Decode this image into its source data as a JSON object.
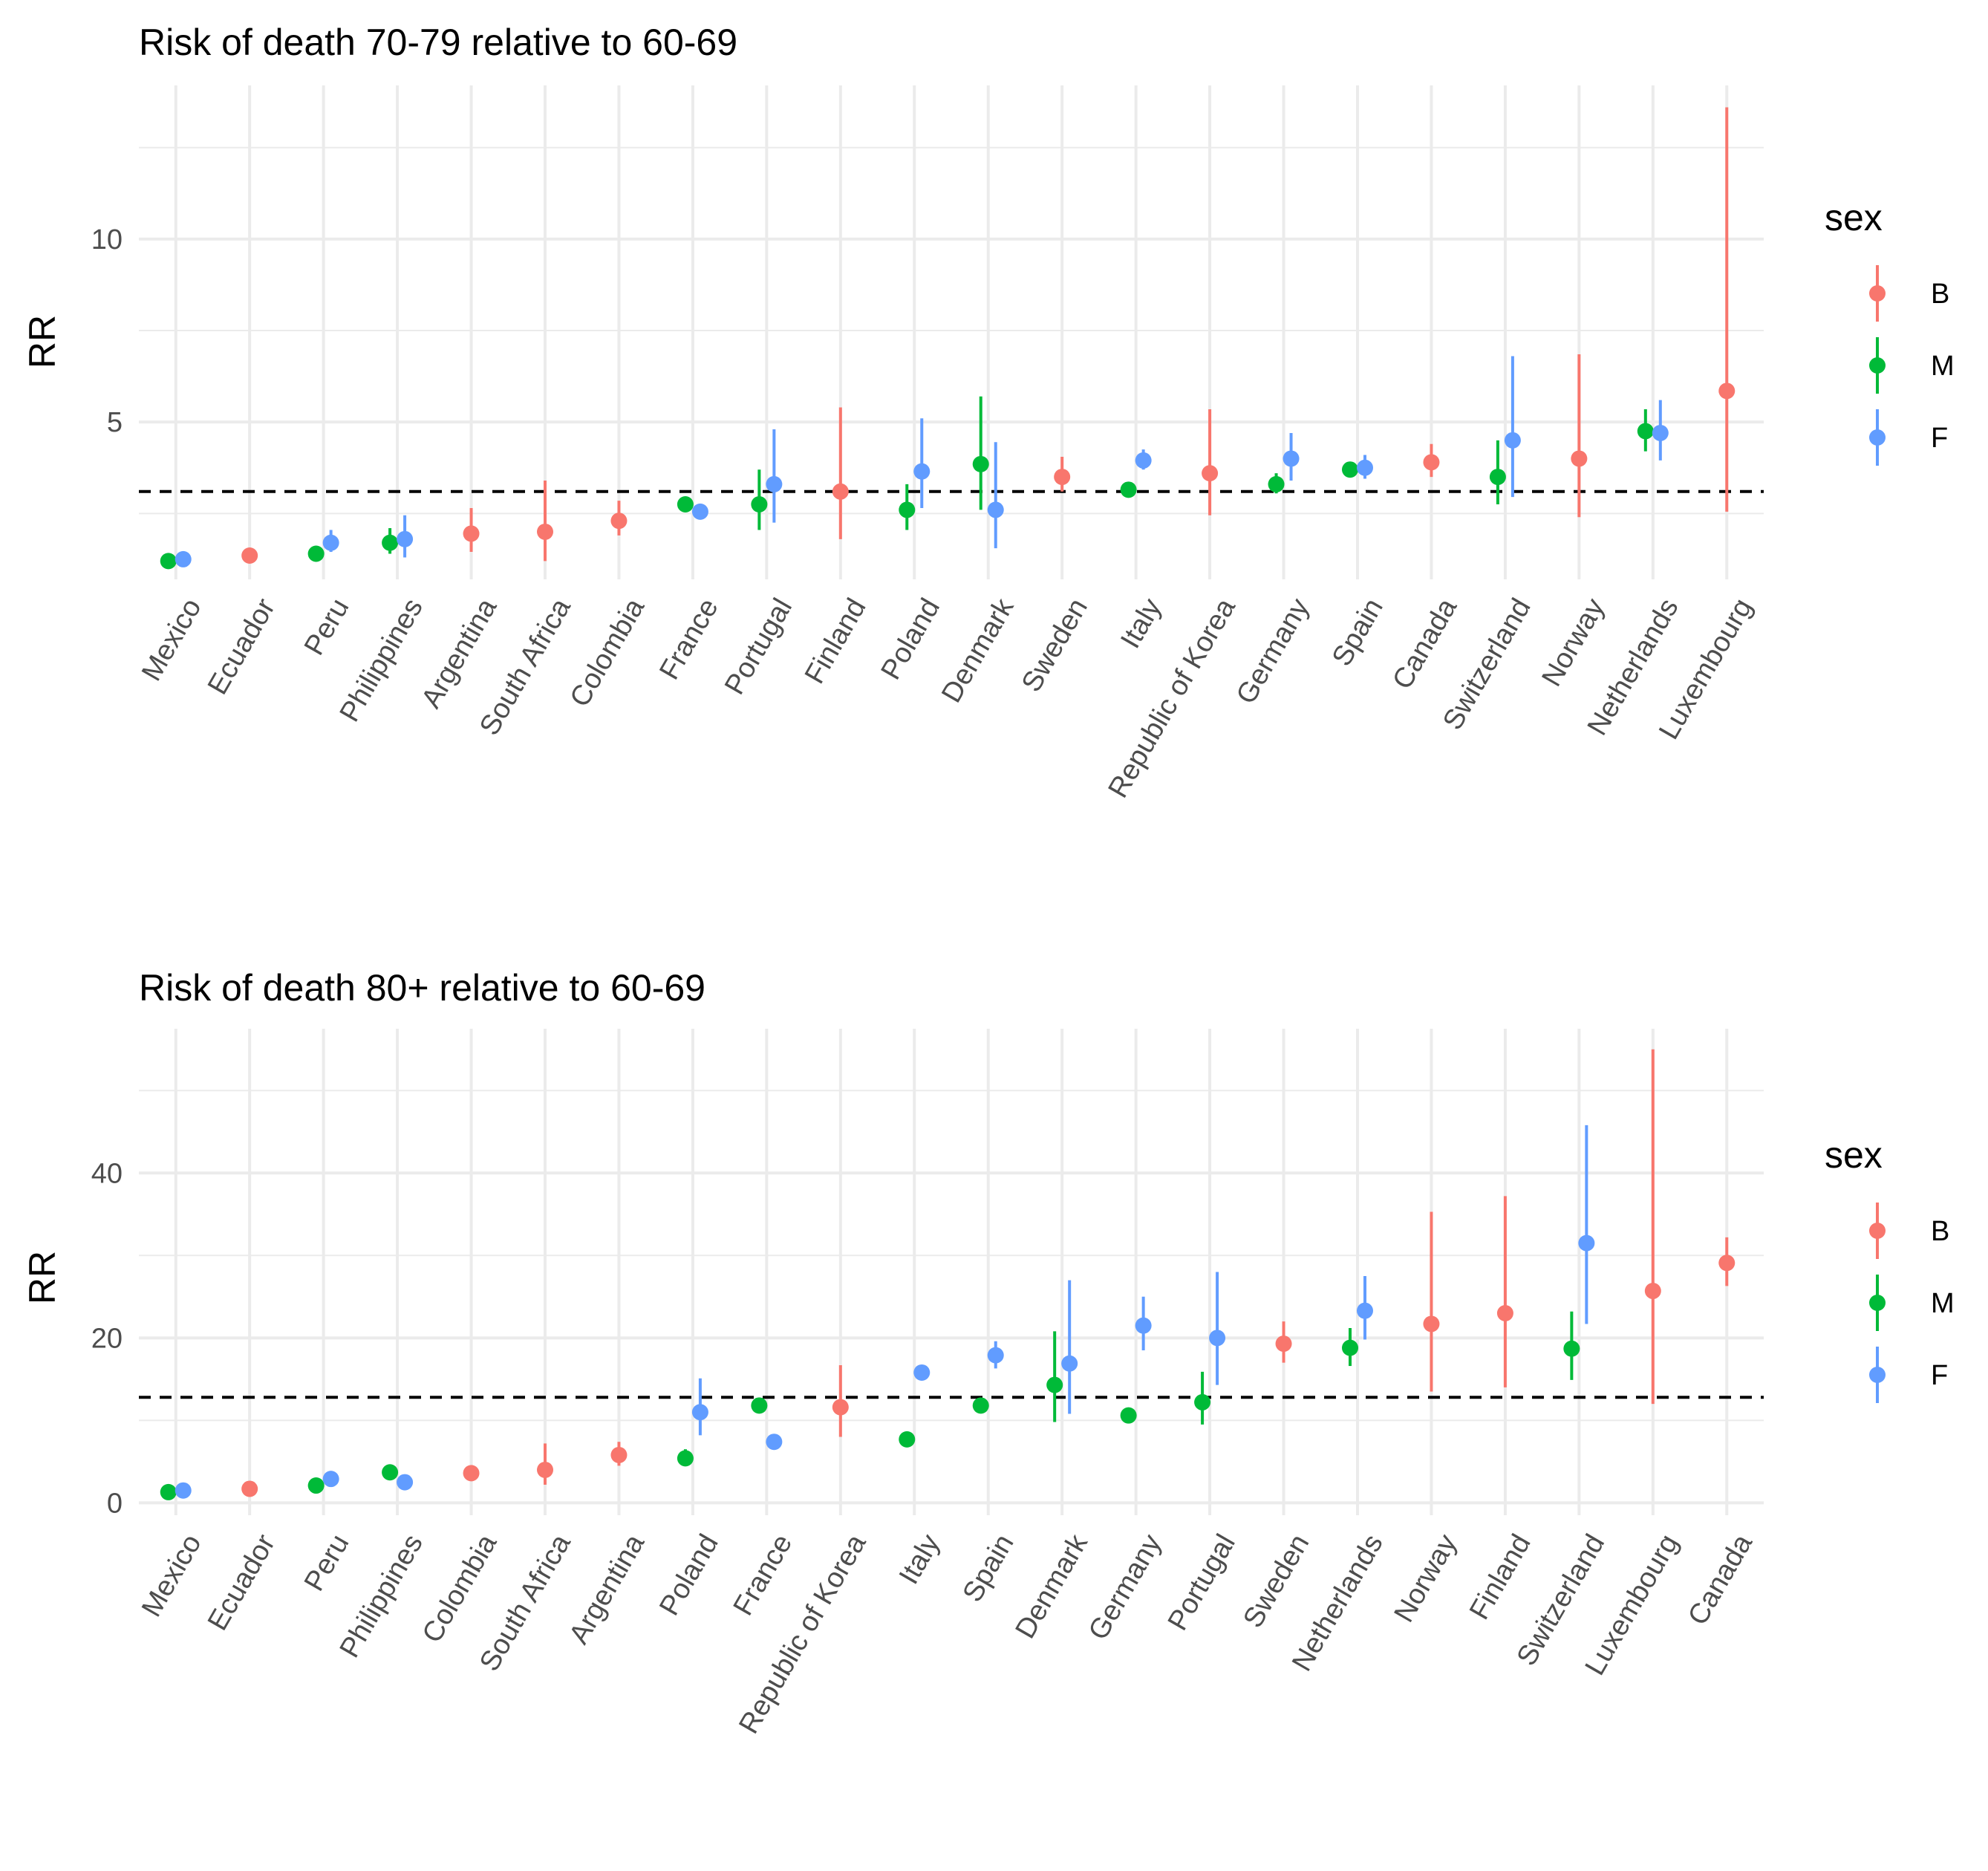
{
  "colors": {
    "B": "#F8766D",
    "M": "#00BA38",
    "F": "#619CFF"
  },
  "chart_data": [
    {
      "type": "scatter",
      "title": "Risk of death 70-79 relative to 60-69",
      "ylabel": "RR",
      "xlabel": "",
      "ylim": [
        0.7,
        14.2
      ],
      "yticks": [
        5,
        10
      ],
      "reference_line": 3.1,
      "grid": true,
      "legend": {
        "title": "sex",
        "position": "right",
        "entries": [
          "B",
          "M",
          "F"
        ]
      },
      "categories": [
        "Mexico",
        "Ecuador",
        "Peru",
        "Philippines",
        "Argentina",
        "South Africa",
        "Colombia",
        "France",
        "Portugal",
        "Finland",
        "Poland",
        "Denmark",
        "Sweden",
        "Italy",
        "Republic of Korea",
        "Germany",
        "Spain",
        "Canada",
        "Switzerland",
        "Norway",
        "Netherlands",
        "Luxembourg"
      ],
      "series": [
        {
          "name": "B",
          "points": [
            {
              "x": "Ecuador",
              "y": 1.35,
              "lo": 1.25,
              "hi": 1.45
            },
            {
              "x": "Argentina",
              "y": 1.95,
              "lo": 1.45,
              "hi": 2.65
            },
            {
              "x": "South Africa",
              "y": 2.0,
              "lo": 1.2,
              "hi": 3.4
            },
            {
              "x": "Colombia",
              "y": 2.3,
              "lo": 1.9,
              "hi": 2.85
            },
            {
              "x": "Finland",
              "y": 3.1,
              "lo": 1.8,
              "hi": 5.4
            },
            {
              "x": "Sweden",
              "y": 3.5,
              "lo": 3.1,
              "hi": 4.05
            },
            {
              "x": "Republic of Korea",
              "y": 3.6,
              "lo": 2.45,
              "hi": 5.35
            },
            {
              "x": "Canada",
              "y": 3.9,
              "lo": 3.5,
              "hi": 4.4
            },
            {
              "x": "Norway",
              "y": 4.0,
              "lo": 2.4,
              "hi": 6.85
            },
            {
              "x": "Luxembourg",
              "y": 5.85,
              "lo": 2.55,
              "hi": 13.6
            }
          ]
        },
        {
          "name": "M",
          "points": [
            {
              "x": "Mexico",
              "y": 1.2,
              "lo": 1.15,
              "hi": 1.25
            },
            {
              "x": "Peru",
              "y": 1.4,
              "lo": 1.3,
              "hi": 1.55
            },
            {
              "x": "Philippines",
              "y": 1.7,
              "lo": 1.4,
              "hi": 2.1
            },
            {
              "x": "France",
              "y": 2.75,
              "lo": 2.6,
              "hi": 2.9
            },
            {
              "x": "Portugal",
              "y": 2.75,
              "lo": 2.05,
              "hi": 3.7
            },
            {
              "x": "Poland",
              "y": 2.6,
              "lo": 2.05,
              "hi": 3.3
            },
            {
              "x": "Denmark",
              "y": 3.85,
              "lo": 2.6,
              "hi": 5.7
            },
            {
              "x": "Italy",
              "y": 3.15,
              "lo": 3.0,
              "hi": 3.3
            },
            {
              "x": "Germany",
              "y": 3.3,
              "lo": 3.05,
              "hi": 3.6
            },
            {
              "x": "Spain",
              "y": 3.7,
              "lo": 3.5,
              "hi": 3.9
            },
            {
              "x": "Switzerland",
              "y": 3.5,
              "lo": 2.75,
              "hi": 4.5
            },
            {
              "x": "Netherlands",
              "y": 4.75,
              "lo": 4.2,
              "hi": 5.35
            }
          ]
        },
        {
          "name": "F",
          "points": [
            {
              "x": "Mexico",
              "y": 1.25,
              "lo": 1.2,
              "hi": 1.3
            },
            {
              "x": "Peru",
              "y": 1.7,
              "lo": 1.45,
              "hi": 2.05
            },
            {
              "x": "Philippines",
              "y": 1.8,
              "lo": 1.3,
              "hi": 2.45
            },
            {
              "x": "France",
              "y": 2.55,
              "lo": 2.4,
              "hi": 2.7
            },
            {
              "x": "Portugal",
              "y": 3.3,
              "lo": 2.25,
              "hi": 4.8
            },
            {
              "x": "Poland",
              "y": 3.65,
              "lo": 2.65,
              "hi": 5.1
            },
            {
              "x": "Denmark",
              "y": 2.6,
              "lo": 1.55,
              "hi": 4.45
            },
            {
              "x": "Italy",
              "y": 3.95,
              "lo": 3.7,
              "hi": 4.25
            },
            {
              "x": "Germany",
              "y": 4.0,
              "lo": 3.4,
              "hi": 4.7
            },
            {
              "x": "Spain",
              "y": 3.75,
              "lo": 3.45,
              "hi": 4.1
            },
            {
              "x": "Switzerland",
              "y": 4.5,
              "lo": 2.95,
              "hi": 6.8
            },
            {
              "x": "Netherlands",
              "y": 4.7,
              "lo": 3.95,
              "hi": 5.6
            }
          ]
        }
      ]
    },
    {
      "type": "scatter",
      "title": "Risk of death 80+ relative to 60-69",
      "ylabel": "RR",
      "xlabel": "",
      "ylim": [
        -1.5,
        57.5
      ],
      "yticks": [
        0,
        20,
        40
      ],
      "reference_line": 12.8,
      "grid": true,
      "legend": {
        "title": "sex",
        "position": "right",
        "entries": [
          "B",
          "M",
          "F"
        ]
      },
      "categories": [
        "Mexico",
        "Ecuador",
        "Peru",
        "Philippines",
        "Colombia",
        "South Africa",
        "Argentina",
        "Poland",
        "France",
        "Republic of Korea",
        "Italy",
        "Spain",
        "Denmark",
        "Germany",
        "Portugal",
        "Sweden",
        "Netherlands",
        "Norway",
        "Finland",
        "Switzerland",
        "Luxembourg",
        "Canada"
      ],
      "series": [
        {
          "name": "B",
          "points": [
            {
              "x": "Ecuador",
              "y": 1.7,
              "lo": 1.5,
              "hi": 1.9
            },
            {
              "x": "Colombia",
              "y": 3.6,
              "lo": 3.2,
              "hi": 4.0
            },
            {
              "x": "South Africa",
              "y": 4.0,
              "lo": 2.2,
              "hi": 7.2
            },
            {
              "x": "Argentina",
              "y": 5.8,
              "lo": 4.5,
              "hi": 7.4
            },
            {
              "x": "Republic of Korea",
              "y": 11.6,
              "lo": 8.0,
              "hi": 16.7
            },
            {
              "x": "Sweden",
              "y": 19.3,
              "lo": 17.0,
              "hi": 22.0
            },
            {
              "x": "Norway",
              "y": 21.7,
              "lo": 13.5,
              "hi": 35.3
            },
            {
              "x": "Finland",
              "y": 23.0,
              "lo": 14.0,
              "hi": 37.2
            },
            {
              "x": "Luxembourg",
              "y": 25.7,
              "lo": 12.0,
              "hi": 55.0
            },
            {
              "x": "Canada",
              "y": 29.1,
              "lo": 26.3,
              "hi": 32.2
            }
          ]
        },
        {
          "name": "M",
          "points": [
            {
              "x": "Mexico",
              "y": 1.3,
              "lo": 1.2,
              "hi": 1.4
            },
            {
              "x": "Peru",
              "y": 2.1,
              "lo": 1.9,
              "hi": 2.3
            },
            {
              "x": "Philippines",
              "y": 3.7,
              "lo": 3.0,
              "hi": 4.5
            },
            {
              "x": "Poland",
              "y": 5.4,
              "lo": 4.5,
              "hi": 6.5
            },
            {
              "x": "France",
              "y": 11.8,
              "lo": 11.3,
              "hi": 12.3
            },
            {
              "x": "Italy",
              "y": 7.7,
              "lo": 7.4,
              "hi": 8.0
            },
            {
              "x": "Spain",
              "y": 11.8,
              "lo": 11.2,
              "hi": 12.4
            },
            {
              "x": "Denmark",
              "y": 14.3,
              "lo": 9.8,
              "hi": 20.8
            },
            {
              "x": "Germany",
              "y": 10.6,
              "lo": 10.0,
              "hi": 11.2
            },
            {
              "x": "Portugal",
              "y": 12.2,
              "lo": 9.5,
              "hi": 15.9
            },
            {
              "x": "Netherlands",
              "y": 18.8,
              "lo": 16.6,
              "hi": 21.2
            },
            {
              "x": "Switzerland",
              "y": 18.7,
              "lo": 14.9,
              "hi": 23.2
            }
          ]
        },
        {
          "name": "F",
          "points": [
            {
              "x": "Mexico",
              "y": 1.5,
              "lo": 1.4,
              "hi": 1.6
            },
            {
              "x": "Peru",
              "y": 2.9,
              "lo": 2.6,
              "hi": 3.2
            },
            {
              "x": "Philippines",
              "y": 2.5,
              "lo": 2.1,
              "hi": 2.9
            },
            {
              "x": "Poland",
              "y": 11.0,
              "lo": 8.2,
              "hi": 15.1
            },
            {
              "x": "France",
              "y": 7.4,
              "lo": 7.0,
              "hi": 7.8
            },
            {
              "x": "Italy",
              "y": 15.8,
              "lo": 15.0,
              "hi": 16.7
            },
            {
              "x": "Spain",
              "y": 17.9,
              "lo": 16.3,
              "hi": 19.6
            },
            {
              "x": "Denmark",
              "y": 16.9,
              "lo": 10.8,
              "hi": 27.0
            },
            {
              "x": "Germany",
              "y": 21.5,
              "lo": 18.5,
              "hi": 25.0
            },
            {
              "x": "Portugal",
              "y": 20.0,
              "lo": 14.3,
              "hi": 28.0
            },
            {
              "x": "Netherlands",
              "y": 23.3,
              "lo": 19.8,
              "hi": 27.5
            },
            {
              "x": "Switzerland",
              "y": 31.5,
              "lo": 21.7,
              "hi": 45.8
            }
          ]
        }
      ]
    }
  ]
}
